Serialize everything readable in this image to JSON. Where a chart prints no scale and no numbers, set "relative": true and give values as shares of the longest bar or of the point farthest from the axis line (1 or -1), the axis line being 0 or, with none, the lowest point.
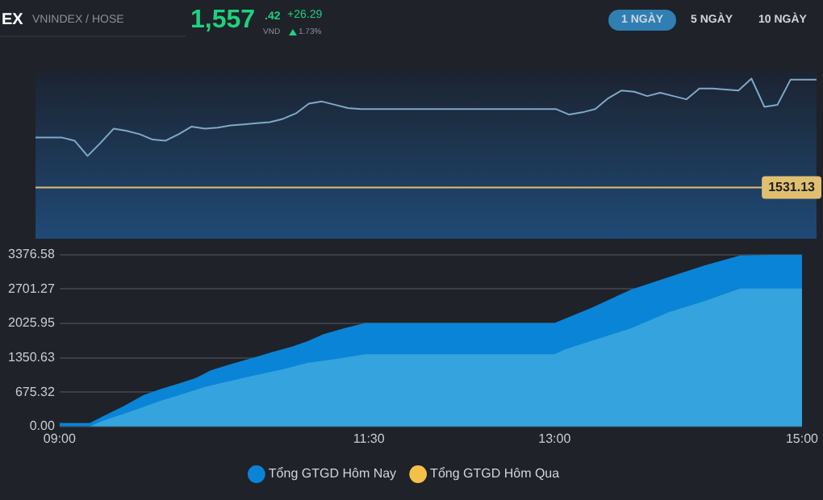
{
  "chart_data": [
    {
      "type": "other",
      "title": "EX",
      "subtitle": "VNINDEX / HOSE",
      "annotations": [
        "1,557",
        ".42",
        "VND",
        "+26.29",
        "1.73%",
        "1 NGÀY",
        "5 NGÀY",
        "10 NGÀY"
      ]
    },
    {
      "type": "line",
      "relative": true,
      "categories": [
        null,
        null,
        null,
        null,
        null,
        null,
        null,
        null,
        null,
        null,
        null,
        null,
        null,
        null,
        null,
        null,
        null,
        null,
        null,
        null,
        null,
        null,
        null,
        null,
        null,
        null,
        null,
        null,
        null,
        null,
        null,
        null,
        null,
        null,
        null,
        null,
        null,
        null,
        null,
        null,
        null,
        null,
        null,
        null,
        null,
        null,
        null,
        null,
        null,
        null,
        null,
        null,
        null,
        null,
        null,
        null,
        null,
        null,
        null,
        null,
        null
      ],
      "values": [
        0.46,
        0.46,
        0.46,
        0.43,
        0.29,
        0.41,
        0.54,
        0.52,
        0.49,
        0.44,
        0.43,
        0.49,
        0.56,
        0.54,
        0.55,
        0.57,
        0.58,
        0.59,
        0.6,
        0.63,
        0.68,
        0.77,
        0.79,
        0.76,
        0.73,
        0.72,
        0.72,
        0.72,
        0.72,
        0.72,
        0.72,
        0.72,
        0.72,
        0.72,
        0.72,
        0.72,
        0.72,
        0.72,
        0.72,
        0.72,
        0.72,
        0.67,
        0.69,
        0.72,
        0.82,
        0.89,
        0.88,
        0.84,
        0.87,
        0.84,
        0.81,
        0.91,
        0.91,
        0.9,
        0.89,
        1,
        0.74,
        0.76,
        0.99,
        0.99,
        0.99
      ],
      "color": "#7fa9c9",
      "marker": "none",
      "ref_lines": [
        {
          "axis": "y",
          "value": 0,
          "color": "#e0c070"
        }
      ],
      "annotations": [
        "1531.13"
      ]
    },
    {
      "type": "area",
      "xlim": [
        9,
        15
      ],
      "ylim": [
        0,
        3376.58
      ],
      "xticks": [
        {
          "value": 9,
          "label": "09:00"
        },
        {
          "value": 11.5,
          "label": "11:30"
        },
        {
          "value": 13,
          "label": "13:00"
        },
        {
          "value": 15,
          "label": "15:00"
        }
      ],
      "yticks": [
        {
          "value": 0,
          "label": "0.00"
        },
        675.32,
        1350.63,
        2025.95,
        2701.27,
        3376.58
      ],
      "grid": "y",
      "legend": "bottom",
      "marker": "none",
      "series": [
        {
          "name": "Tổng GTGD Hôm Nay",
          "color": "#0a84d6",
          "x": [
            9.0,
            9.245,
            9.35,
            9.51,
            9.68,
            9.81,
            9.97,
            10.1,
            10.22,
            10.39,
            10.55,
            10.72,
            10.88,
            11.01,
            11.13,
            11.3,
            11.47,
            13.0,
            13.29,
            13.62,
            13.92,
            14.21,
            14.5,
            14.74,
            15.0
          ],
          "values": [
            70,
            70,
            200,
            390,
            620,
            730,
            850,
            950,
            1100,
            1230,
            1340,
            1460,
            1570,
            1680,
            1810,
            1930,
            2030,
            2030,
            2320,
            2690,
            2930,
            3160,
            3360,
            3370,
            3370
          ]
        },
        {
          "color": "#35a3de",
          "x": [
            9.245,
            9.35,
            9.56,
            9.81,
            9.97,
            10.18,
            10.39,
            10.59,
            10.8,
            11.01,
            11.22,
            11.47,
            13.0,
            13.08,
            13.62,
            13.92,
            14.21,
            14.5,
            15.0
          ],
          "values": [
            0,
            110,
            280,
            500,
            620,
            780,
            900,
            1010,
            1120,
            1250,
            1320,
            1420,
            1420,
            1510,
            1930,
            2240,
            2460,
            2710,
            2710
          ]
        },
        {
          "name": "Tổng GTGD Hôm Qua",
          "color": "#f5c04a"
        }
      ]
    }
  ]
}
